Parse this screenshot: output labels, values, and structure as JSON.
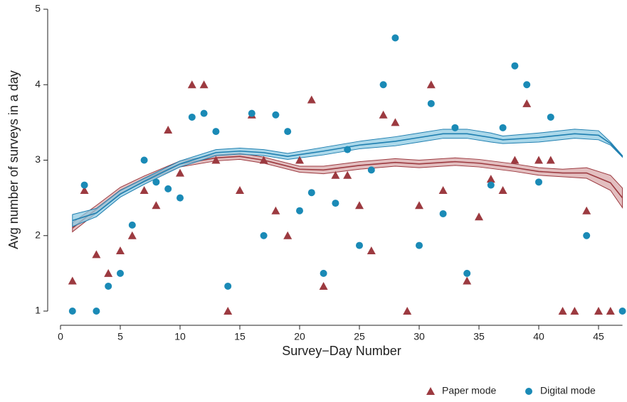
{
  "chart_data": {
    "type": "scatter",
    "xlabel": "Survey−Day Number",
    "ylabel": "Avg number of surveys in a day",
    "xlim": [
      0,
      47
    ],
    "ylim": [
      1,
      5
    ],
    "xticks": [
      0,
      5,
      10,
      15,
      20,
      25,
      30,
      35,
      40,
      45
    ],
    "yticks": [
      1,
      2,
      3,
      4,
      5
    ],
    "legend": "bottom-right",
    "x": [
      1,
      2,
      3,
      4,
      5,
      6,
      7,
      8,
      9,
      10,
      11,
      12,
      13,
      14,
      15,
      16,
      17,
      18,
      19,
      20,
      21,
      22,
      23,
      24,
      25,
      26,
      27,
      28,
      29,
      30,
      31,
      32,
      33,
      34,
      35,
      36,
      37,
      38,
      39,
      40,
      41,
      42,
      43,
      44,
      45,
      46,
      47
    ],
    "series": [
      {
        "name": "Paper mode",
        "marker": "triangle",
        "color": "#9c3a40",
        "values": [
          1.4,
          2.6,
          1.75,
          1.5,
          1.8,
          2.0,
          2.6,
          2.4,
          3.4,
          2.83,
          4.0,
          4.0,
          3.0,
          1.0,
          2.6,
          3.6,
          3.0,
          2.33,
          2.0,
          3.0,
          3.8,
          1.33,
          2.8,
          2.8,
          2.4,
          1.8,
          3.6,
          3.5,
          1.0,
          2.4,
          4.0,
          2.6,
          null,
          1.4,
          2.25,
          2.75,
          2.6,
          3.0,
          3.75,
          3.0,
          3.0,
          1.0,
          1.0,
          2.33,
          1.0,
          1.0,
          null
        ]
      },
      {
        "name": "Digital mode",
        "marker": "circle",
        "color": "#1a8ab6",
        "values": [
          1.0,
          2.67,
          1.0,
          1.33,
          1.5,
          2.14,
          3.0,
          2.71,
          2.62,
          2.5,
          3.57,
          3.62,
          3.38,
          1.33,
          null,
          3.62,
          2.0,
          3.6,
          3.38,
          2.33,
          2.57,
          1.5,
          2.43,
          3.14,
          1.87,
          2.87,
          4.0,
          4.62,
          null,
          1.87,
          3.75,
          2.29,
          3.43,
          1.5,
          null,
          2.67,
          3.43,
          4.25,
          4.0,
          2.71,
          3.57,
          null,
          null,
          2.0,
          null,
          null,
          1.0
        ]
      }
    ],
    "fits": [
      {
        "color": "#9c3a40",
        "band_color": "#d9a9ab",
        "x": [
          1,
          3,
          5,
          7,
          10,
          13,
          15,
          17,
          20,
          22,
          25,
          28,
          30,
          33,
          35,
          38,
          40,
          42,
          44,
          46,
          47
        ],
        "values": [
          2.1,
          2.35,
          2.6,
          2.75,
          2.95,
          3.03,
          3.05,
          3.0,
          2.88,
          2.87,
          2.93,
          2.97,
          2.95,
          2.98,
          2.96,
          2.9,
          2.85,
          2.83,
          2.83,
          2.7,
          2.5
        ],
        "lower": [
          2.05,
          2.3,
          2.56,
          2.71,
          2.91,
          2.99,
          3.01,
          2.96,
          2.84,
          2.82,
          2.88,
          2.92,
          2.9,
          2.93,
          2.91,
          2.85,
          2.8,
          2.78,
          2.76,
          2.6,
          2.37
        ],
        "upper": [
          2.17,
          2.4,
          2.64,
          2.79,
          2.99,
          3.07,
          3.09,
          3.04,
          2.92,
          2.92,
          2.98,
          3.02,
          3.0,
          3.03,
          3.01,
          2.95,
          2.9,
          2.88,
          2.9,
          2.8,
          2.63
        ]
      },
      {
        "color": "#1f7fb0",
        "band_color": "#8fcbe3",
        "x": [
          1,
          3,
          5,
          7,
          10,
          13,
          15,
          17,
          19,
          22,
          25,
          28,
          30,
          32,
          34,
          36,
          37,
          40,
          43,
          45,
          46,
          47
        ],
        "values": [
          2.2,
          2.3,
          2.55,
          2.72,
          2.95,
          3.1,
          3.12,
          3.1,
          3.05,
          3.12,
          3.2,
          3.25,
          3.3,
          3.35,
          3.35,
          3.3,
          3.27,
          3.3,
          3.35,
          3.33,
          3.22,
          3.05
        ],
        "lower": [
          2.12,
          2.25,
          2.51,
          2.68,
          2.91,
          3.06,
          3.08,
          3.06,
          3.01,
          3.07,
          3.15,
          3.19,
          3.24,
          3.29,
          3.29,
          3.24,
          3.22,
          3.24,
          3.29,
          3.27,
          3.2,
          3.04
        ],
        "upper": [
          2.28,
          2.36,
          2.6,
          2.76,
          2.99,
          3.14,
          3.16,
          3.14,
          3.09,
          3.17,
          3.25,
          3.31,
          3.36,
          3.41,
          3.41,
          3.36,
          3.32,
          3.36,
          3.41,
          3.39,
          3.24,
          3.06
        ]
      }
    ]
  }
}
